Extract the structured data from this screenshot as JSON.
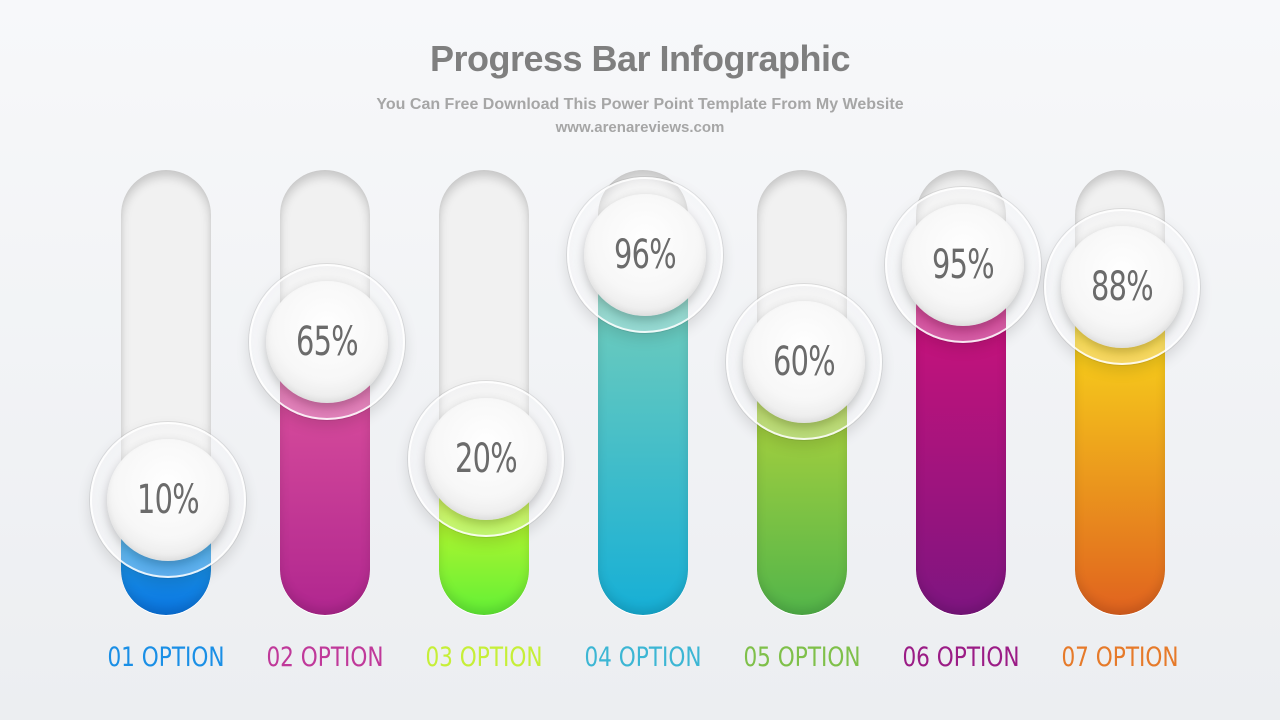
{
  "header": {
    "title": "Progress Bar Infographic",
    "subtitle": "You Can Free Download This Power Point Template From My Website",
    "website": "www.arenareviews.com"
  },
  "bars": [
    {
      "label": "01 OPTION",
      "percent_text": "10%",
      "value": 10,
      "color_top": "#2cb6f0",
      "color_bottom": "#0a74e0",
      "label_color": "#1a8fe6"
    },
    {
      "label": "02 OPTION",
      "percent_text": "65%",
      "value": 65,
      "color_top": "#e0559e",
      "color_bottom": "#b0268f",
      "label_color": "#c0399a"
    },
    {
      "label": "03 OPTION",
      "percent_text": "20%",
      "value": 20,
      "color_top": "#e7f72a",
      "color_bottom": "#62f036",
      "label_color": "#c6ef38"
    },
    {
      "label": "04 OPTION",
      "percent_text": "96%",
      "value": 96,
      "color_top": "#7dd0b8",
      "color_bottom": "#16afd6",
      "label_color": "#3cb6d4"
    },
    {
      "label": "05 OPTION",
      "percent_text": "60%",
      "value": 60,
      "color_top": "#bcd63a",
      "color_bottom": "#52b54a",
      "label_color": "#7fc04a"
    },
    {
      "label": "06 OPTION",
      "percent_text": "95%",
      "value": 95,
      "color_top": "#d5127a",
      "color_bottom": "#7d1580",
      "label_color": "#9b1c86"
    },
    {
      "label": "07 OPTION",
      "percent_text": "88%",
      "value": 88,
      "color_top": "#fbe51a",
      "color_bottom": "#e0621f",
      "label_color": "#e67a2a"
    }
  ]
}
